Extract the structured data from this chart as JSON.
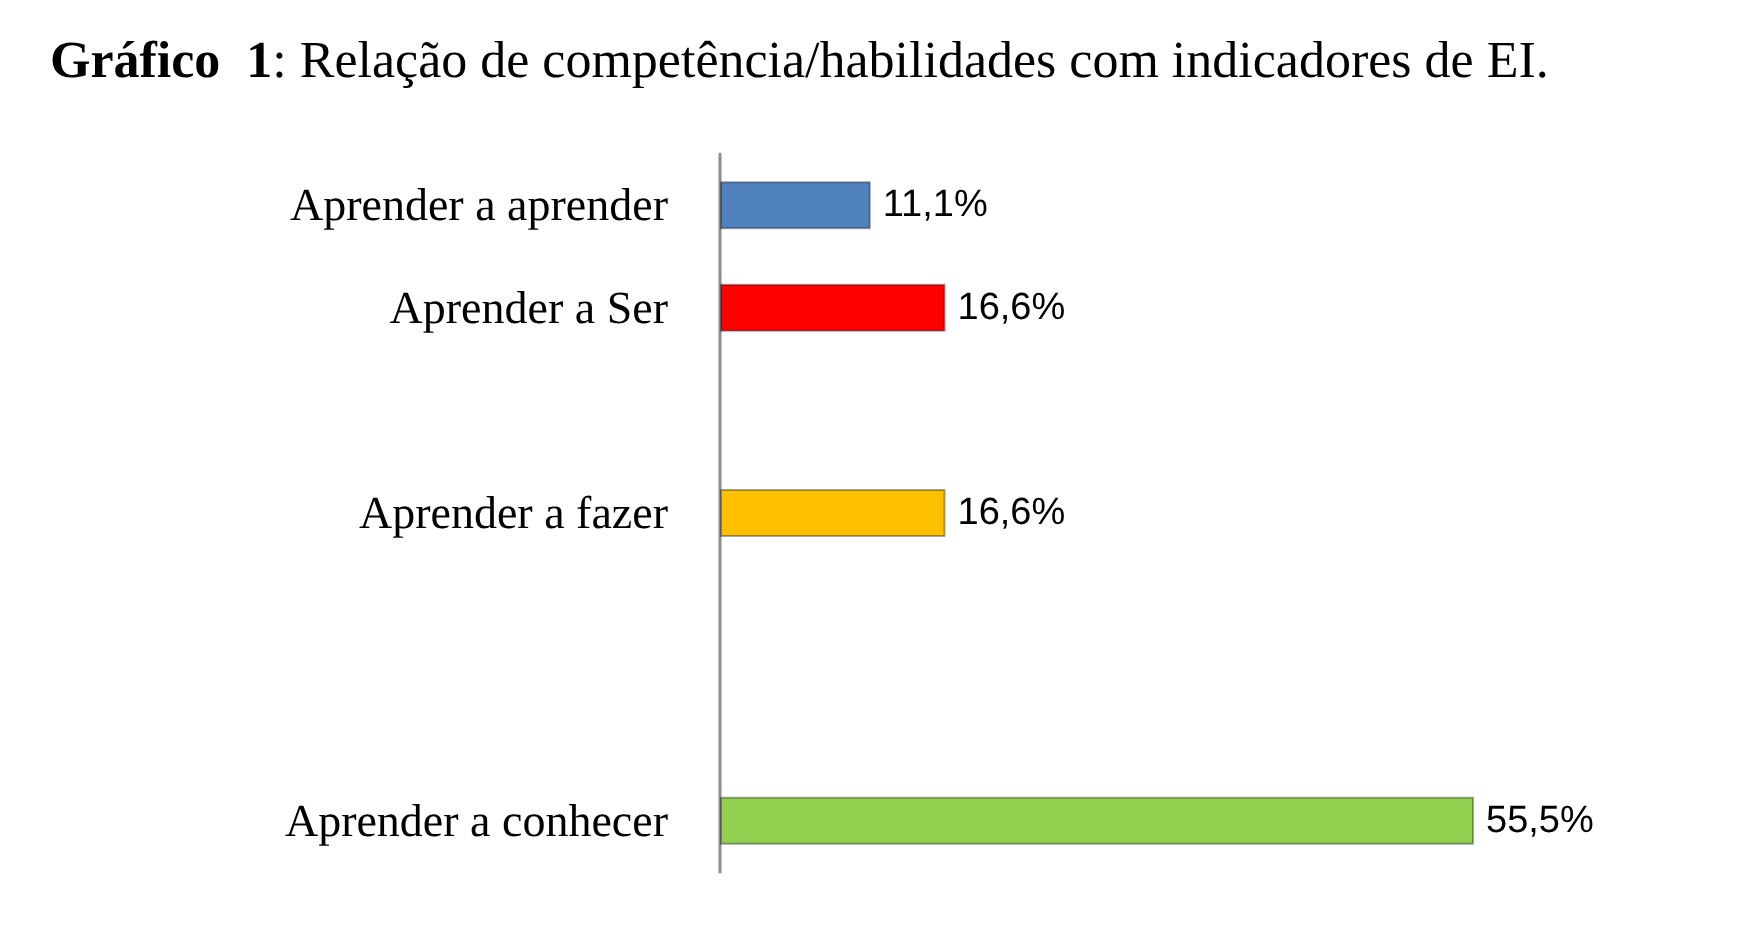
{
  "chart_data": {
    "type": "bar",
    "orientation": "horizontal",
    "title": "Gráfico  1: Relação de competência/habilidades com indicadores de EI.",
    "categories": [
      "Aprender a aprender",
      "Aprender a Ser",
      null,
      "Aprender a fazer",
      null,
      null,
      "Aprender a conhecer"
    ],
    "values": [
      11.1,
      16.6,
      null,
      16.6,
      null,
      null,
      55.5
    ],
    "colors": [
      "#4f81bd",
      "#ff0000",
      null,
      "#ffc000",
      null,
      null,
      "#92d050"
    ],
    "value_labels": [
      "11,1%",
      "16,6%",
      null,
      "16,6%",
      null,
      null,
      "55,5%"
    ],
    "tick_labels": "y",
    "grid": false
  }
}
